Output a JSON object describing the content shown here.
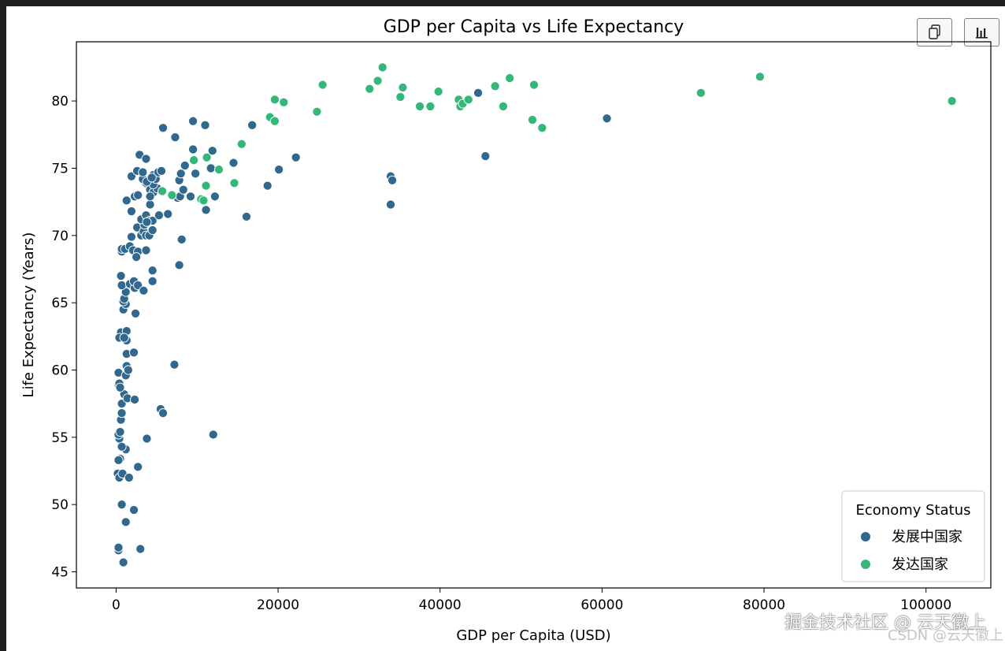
{
  "toolbar": {
    "copy_icon": "copy-icon",
    "chart_icon": "bar-chart-icon"
  },
  "watermarks": {
    "primary": "掘金技术社区 @ 云天徽上",
    "secondary": "CSDN @云天徽上"
  },
  "colors": {
    "developing": "#31688e",
    "developed": "#35b779"
  },
  "chart_data": {
    "type": "scatter",
    "title": "GDP per Capita vs Life Expectancy",
    "xlabel": "GDP per Capita (USD)",
    "ylabel": "Life Expectancy (Years)",
    "xlim": [
      -4900,
      108000
    ],
    "ylim": [
      43.8,
      84.4
    ],
    "xticks": [
      0,
      20000,
      40000,
      60000,
      80000,
      100000
    ],
    "yticks": [
      45,
      50,
      55,
      60,
      65,
      70,
      75,
      80
    ],
    "legend": {
      "title": "Economy Status",
      "placement": "lower-right",
      "entries": [
        "发展中国家",
        "发达国家"
      ]
    },
    "series": [
      {
        "name": "发展中国家",
        "color": "#31688e",
        "points": [
          [
            300,
            46.6
          ],
          [
            300,
            46.8
          ],
          [
            900,
            45.7
          ],
          [
            700,
            50.0
          ],
          [
            1200,
            48.7
          ],
          [
            2200,
            49.6
          ],
          [
            3000,
            46.7
          ],
          [
            200,
            52.3
          ],
          [
            400,
            52.0
          ],
          [
            500,
            53.4
          ],
          [
            300,
            53.3
          ],
          [
            800,
            52.3
          ],
          [
            1600,
            52.0
          ],
          [
            2700,
            52.8
          ],
          [
            400,
            54.9
          ],
          [
            300,
            55.2
          ],
          [
            500,
            55.4
          ],
          [
            600,
            56.3
          ],
          [
            700,
            56.8
          ],
          [
            1200,
            54.1
          ],
          [
            700,
            54.3
          ],
          [
            3800,
            54.9
          ],
          [
            300,
            58.9
          ],
          [
            400,
            59.0
          ],
          [
            300,
            59.8
          ],
          [
            700,
            57.5
          ],
          [
            1000,
            58.2
          ],
          [
            1400,
            57.9
          ],
          [
            2300,
            57.8
          ],
          [
            500,
            58.7
          ],
          [
            1200,
            59.6
          ],
          [
            1300,
            60.3
          ],
          [
            1500,
            60.0
          ],
          [
            1300,
            61.2
          ],
          [
            2200,
            61.3
          ],
          [
            800,
            62.5
          ],
          [
            600,
            62.8
          ],
          [
            400,
            62.4
          ],
          [
            1300,
            62.9
          ],
          [
            1300,
            62.2
          ],
          [
            1000,
            62.4
          ],
          [
            900,
            64.5
          ],
          [
            1200,
            64.9
          ],
          [
            900,
            65.1
          ],
          [
            1000,
            65.3
          ],
          [
            1200,
            65.8
          ],
          [
            700,
            66.3
          ],
          [
            600,
            67.0
          ],
          [
            1700,
            66.4
          ],
          [
            2300,
            66.1
          ],
          [
            2200,
            66.6
          ],
          [
            2700,
            66.3
          ],
          [
            4500,
            66.6
          ],
          [
            3400,
            65.9
          ],
          [
            2400,
            64.2
          ],
          [
            4500,
            67.4
          ],
          [
            700,
            68.8
          ],
          [
            700,
            69.0
          ],
          [
            1100,
            69.0
          ],
          [
            1700,
            69.2
          ],
          [
            2100,
            68.9
          ],
          [
            2700,
            68.8
          ],
          [
            2500,
            68.4
          ],
          [
            3700,
            68.9
          ],
          [
            1900,
            69.9
          ],
          [
            2600,
            70.6
          ],
          [
            3100,
            70.0
          ],
          [
            3400,
            70.3
          ],
          [
            3700,
            70.0
          ],
          [
            4100,
            70.0
          ],
          [
            3500,
            70.8
          ],
          [
            4500,
            70.4
          ],
          [
            3100,
            71.2
          ],
          [
            3700,
            71.5
          ],
          [
            4100,
            71.1
          ],
          [
            4500,
            71.1
          ],
          [
            5300,
            71.5
          ],
          [
            6400,
            71.6
          ],
          [
            1900,
            71.8
          ],
          [
            3800,
            71.0
          ],
          [
            4200,
            72.3
          ],
          [
            1300,
            72.6
          ],
          [
            2300,
            72.9
          ],
          [
            2700,
            73.0
          ],
          [
            3700,
            73.9
          ],
          [
            4200,
            73.4
          ],
          [
            4600,
            73.2
          ],
          [
            5100,
            73.5
          ],
          [
            4200,
            72.9
          ],
          [
            4600,
            73.8
          ],
          [
            4600,
            74.5
          ],
          [
            4900,
            74.2
          ],
          [
            5200,
            74.7
          ],
          [
            5600,
            74.8
          ],
          [
            3300,
            74.2
          ],
          [
            3800,
            74.0
          ],
          [
            4400,
            74.3
          ],
          [
            1900,
            74.4
          ],
          [
            2600,
            74.8
          ],
          [
            3300,
            74.7
          ],
          [
            2900,
            76.0
          ],
          [
            3700,
            75.7
          ],
          [
            7600,
            72.8
          ],
          [
            7900,
            72.9
          ],
          [
            8500,
            75.2
          ],
          [
            7800,
            74.1
          ],
          [
            8000,
            74.6
          ],
          [
            9200,
            72.9
          ],
          [
            8300,
            73.4
          ],
          [
            9800,
            74.6
          ],
          [
            9500,
            76.4
          ],
          [
            11700,
            75.0
          ],
          [
            11900,
            76.3
          ],
          [
            11100,
            71.9
          ],
          [
            12200,
            72.9
          ],
          [
            7300,
            77.3
          ],
          [
            5800,
            78.0
          ],
          [
            9500,
            78.5
          ],
          [
            11000,
            78.2
          ],
          [
            16800,
            78.2
          ],
          [
            14500,
            75.4
          ],
          [
            16100,
            71.4
          ],
          [
            18700,
            73.7
          ],
          [
            20100,
            74.9
          ],
          [
            22200,
            75.8
          ],
          [
            8100,
            69.7
          ],
          [
            7800,
            67.8
          ],
          [
            7200,
            60.4
          ],
          [
            5500,
            57.1
          ],
          [
            5800,
            56.8
          ],
          [
            12000,
            55.2
          ],
          [
            33900,
            74.4
          ],
          [
            34100,
            74.1
          ],
          [
            33900,
            72.3
          ],
          [
            44700,
            80.6
          ],
          [
            45600,
            75.9
          ],
          [
            60600,
            78.7
          ]
        ]
      },
      {
        "name": "发达国家",
        "color": "#35b779",
        "points": [
          [
            5700,
            73.3
          ],
          [
            6900,
            73.0
          ],
          [
            10500,
            72.7
          ],
          [
            10800,
            72.6
          ],
          [
            11100,
            73.7
          ],
          [
            9600,
            75.6
          ],
          [
            11200,
            75.8
          ],
          [
            12700,
            74.9
          ],
          [
            14600,
            73.9
          ],
          [
            15500,
            76.8
          ],
          [
            19000,
            78.8
          ],
          [
            19600,
            80.1
          ],
          [
            19600,
            78.5
          ],
          [
            20700,
            79.9
          ],
          [
            24800,
            79.2
          ],
          [
            25500,
            81.2
          ],
          [
            31300,
            80.9
          ],
          [
            32300,
            81.5
          ],
          [
            32900,
            82.5
          ],
          [
            35100,
            80.3
          ],
          [
            35400,
            81.0
          ],
          [
            37500,
            79.6
          ],
          [
            38800,
            79.6
          ],
          [
            39800,
            80.7
          ],
          [
            42300,
            80.1
          ],
          [
            42500,
            79.6
          ],
          [
            42800,
            79.8
          ],
          [
            43500,
            80.1
          ],
          [
            46800,
            81.1
          ],
          [
            47800,
            79.6
          ],
          [
            48600,
            81.7
          ],
          [
            51400,
            78.6
          ],
          [
            51600,
            81.2
          ],
          [
            52600,
            78.0
          ],
          [
            72200,
            80.6
          ],
          [
            79500,
            81.8
          ],
          [
            103200,
            80.0
          ]
        ]
      }
    ]
  }
}
